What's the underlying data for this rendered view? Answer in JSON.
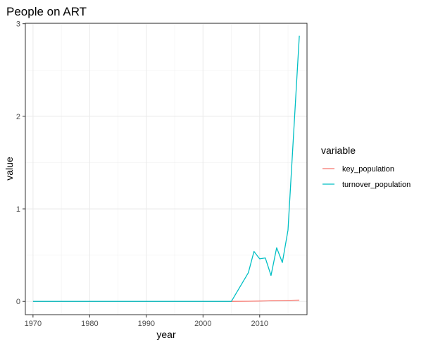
{
  "chart_data": {
    "type": "line",
    "title": "People on ART",
    "xlabel": "year",
    "ylabel": "value",
    "xlim": [
      1968.65,
      2018.35
    ],
    "ylim": [
      -0.143,
      3.005
    ],
    "x_ticks": [
      1970,
      1980,
      1990,
      2000,
      2010
    ],
    "y_ticks": [
      0,
      1,
      2,
      3
    ],
    "grid": true,
    "legend": {
      "title": "variable",
      "position": "right"
    },
    "series": [
      {
        "name": "key_population",
        "color": "#F8766D",
        "x": [
          1970,
          1975,
          1980,
          1985,
          1990,
          1995,
          2000,
          2005,
          2008,
          2010,
          2012,
          2014,
          2017
        ],
        "values": [
          0,
          0,
          0,
          0,
          0,
          0,
          0,
          0,
          0.002,
          0.004,
          0.007,
          0.01,
          0.014
        ]
      },
      {
        "name": "turnover_population",
        "color": "#00BFC4",
        "x": [
          1970,
          1975,
          1980,
          1985,
          1990,
          1995,
          2000,
          2005,
          2008,
          2009,
          2010,
          2011,
          2012,
          2013,
          2014,
          2015,
          2017
        ],
        "values": [
          0,
          0,
          0,
          0,
          0,
          0,
          0,
          0,
          0.31,
          0.54,
          0.46,
          0.47,
          0.28,
          0.58,
          0.42,
          0.77,
          2.87
        ]
      }
    ]
  }
}
